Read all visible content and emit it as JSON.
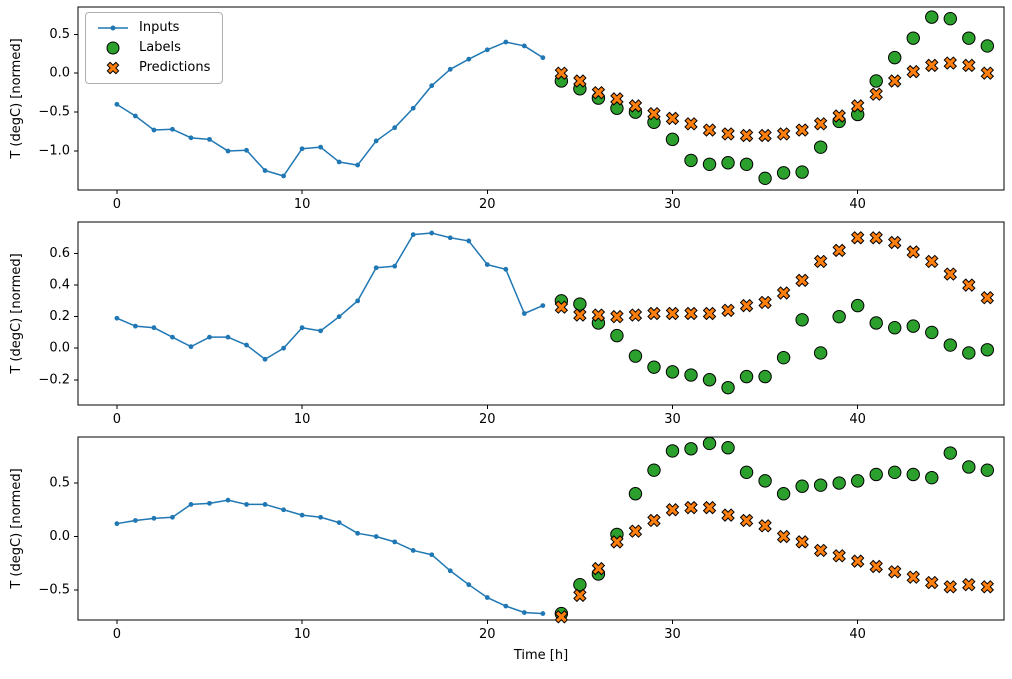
{
  "figure": {
    "background": "#ffffff",
    "xlabel": "Time [h]",
    "ylabel": "T (degC) [normed]"
  },
  "legend": {
    "items": [
      {
        "label": "Inputs",
        "marker": "line-with-dot",
        "color": "#1f77b4"
      },
      {
        "label": "Labels",
        "marker": "filled-circle",
        "color": "#2ca02c"
      },
      {
        "label": "Predictions",
        "marker": "filled-x",
        "color": "#ff7f0e"
      }
    ]
  },
  "chart_data": [
    {
      "type": "line",
      "title": "",
      "xlabel": "",
      "ylabel": "T (degC) [normed]",
      "xlim": [
        -2.1,
        47.9
      ],
      "ylim": [
        -1.5,
        0.85
      ],
      "xticks": [
        0,
        10,
        20,
        30,
        40
      ],
      "xtick_labels": [
        "0",
        "10",
        "20",
        "30",
        "40"
      ],
      "yticks": [
        -1.0,
        -0.5,
        0.0,
        0.5
      ],
      "ytick_labels": [
        "−1.0",
        "−0.5",
        "0.0",
        "0.5"
      ],
      "grid": false,
      "legend_position": "upper left",
      "series": [
        {
          "name": "Inputs",
          "type": "line",
          "color": "#1f77b4",
          "x": [
            0,
            1,
            2,
            3,
            4,
            5,
            6,
            7,
            8,
            9,
            10,
            11,
            12,
            13,
            14,
            15,
            16,
            17,
            18,
            19,
            20,
            21,
            22,
            23
          ],
          "y": [
            -0.4,
            -0.55,
            -0.73,
            -0.72,
            -0.83,
            -0.85,
            -1.0,
            -0.99,
            -1.25,
            -1.32,
            -0.97,
            -0.95,
            -1.14,
            -1.18,
            -0.87,
            -0.7,
            -0.45,
            -0.16,
            0.05,
            0.18,
            0.3,
            0.4,
            0.35,
            0.2
          ]
        },
        {
          "name": "Labels",
          "type": "scatter-circle",
          "color": "#2ca02c",
          "edge_color": "#000000",
          "x": [
            24,
            25,
            26,
            27,
            28,
            29,
            30,
            31,
            32,
            33,
            34,
            35,
            36,
            37,
            38,
            39,
            40,
            41,
            42,
            43,
            44,
            45,
            46,
            47
          ],
          "y": [
            -0.1,
            -0.2,
            -0.32,
            -0.45,
            -0.5,
            -0.63,
            -0.85,
            -1.12,
            -1.17,
            -1.15,
            -1.17,
            -1.35,
            -1.28,
            -1.27,
            -0.95,
            -0.62,
            -0.53,
            -0.1,
            0.2,
            0.45,
            0.72,
            0.7,
            0.45,
            0.35
          ]
        },
        {
          "name": "Predictions",
          "type": "scatter-x",
          "color": "#ff7f0e",
          "edge_color": "#000000",
          "x": [
            24,
            25,
            26,
            27,
            28,
            29,
            30,
            31,
            32,
            33,
            34,
            35,
            36,
            37,
            38,
            39,
            40,
            41,
            42,
            43,
            44,
            45,
            46,
            47
          ],
          "y": [
            0.0,
            -0.1,
            -0.25,
            -0.33,
            -0.42,
            -0.52,
            -0.58,
            -0.65,
            -0.73,
            -0.78,
            -0.8,
            -0.8,
            -0.78,
            -0.73,
            -0.65,
            -0.55,
            -0.42,
            -0.27,
            -0.1,
            0.02,
            0.1,
            0.13,
            0.1,
            0.0
          ]
        }
      ]
    },
    {
      "type": "line",
      "title": "",
      "xlabel": "",
      "ylabel": "T (degC) [normed]",
      "xlim": [
        -2.1,
        47.9
      ],
      "ylim": [
        -0.36,
        0.8
      ],
      "xticks": [
        0,
        10,
        20,
        30,
        40
      ],
      "xtick_labels": [
        "0",
        "10",
        "20",
        "30",
        "40"
      ],
      "yticks": [
        -0.2,
        0.0,
        0.2,
        0.4,
        0.6
      ],
      "ytick_labels": [
        "−0.2",
        "0.0",
        "0.2",
        "0.4",
        "0.6"
      ],
      "grid": false,
      "series": [
        {
          "name": "Inputs",
          "type": "line",
          "color": "#1f77b4",
          "x": [
            0,
            1,
            2,
            3,
            4,
            5,
            6,
            7,
            8,
            9,
            10,
            11,
            12,
            13,
            14,
            15,
            16,
            17,
            18,
            19,
            20,
            21,
            22,
            23
          ],
          "y": [
            0.19,
            0.14,
            0.13,
            0.07,
            0.01,
            0.07,
            0.07,
            0.02,
            -0.07,
            0.0,
            0.13,
            0.11,
            0.2,
            0.3,
            0.51,
            0.52,
            0.72,
            0.73,
            0.7,
            0.68,
            0.53,
            0.5,
            0.22,
            0.27
          ]
        },
        {
          "name": "Labels",
          "type": "scatter-circle",
          "color": "#2ca02c",
          "edge_color": "#000000",
          "x": [
            24,
            25,
            26,
            27,
            28,
            29,
            30,
            31,
            32,
            33,
            34,
            35,
            36,
            37,
            38,
            39,
            40,
            41,
            42,
            43,
            44,
            45,
            46,
            47
          ],
          "y": [
            0.3,
            0.28,
            0.16,
            0.08,
            -0.05,
            -0.12,
            -0.15,
            -0.17,
            -0.2,
            -0.25,
            -0.18,
            -0.18,
            -0.06,
            0.18,
            -0.03,
            0.2,
            0.27,
            0.16,
            0.13,
            0.14,
            0.1,
            0.02,
            -0.03,
            -0.01
          ]
        },
        {
          "name": "Predictions",
          "type": "scatter-x",
          "color": "#ff7f0e",
          "edge_color": "#000000",
          "x": [
            24,
            25,
            26,
            27,
            28,
            29,
            30,
            31,
            32,
            33,
            34,
            35,
            36,
            37,
            38,
            39,
            40,
            41,
            42,
            43,
            44,
            45,
            46,
            47
          ],
          "y": [
            0.26,
            0.21,
            0.21,
            0.2,
            0.21,
            0.22,
            0.22,
            0.22,
            0.22,
            0.24,
            0.27,
            0.29,
            0.35,
            0.43,
            0.55,
            0.62,
            0.7,
            0.7,
            0.67,
            0.61,
            0.55,
            0.47,
            0.4,
            0.32
          ]
        }
      ]
    },
    {
      "type": "line",
      "title": "",
      "xlabel": "Time [h]",
      "ylabel": "T (degC) [normed]",
      "xlim": [
        -2.1,
        47.9
      ],
      "ylim": [
        -0.78,
        0.93
      ],
      "xticks": [
        0,
        10,
        20,
        30,
        40
      ],
      "xtick_labels": [
        "0",
        "10",
        "20",
        "30",
        "40"
      ],
      "yticks": [
        -0.5,
        0.0,
        0.5
      ],
      "ytick_labels": [
        "−0.5",
        "0.0",
        "0.5"
      ],
      "grid": false,
      "series": [
        {
          "name": "Inputs",
          "type": "line",
          "color": "#1f77b4",
          "x": [
            0,
            1,
            2,
            3,
            4,
            5,
            6,
            7,
            8,
            9,
            10,
            11,
            12,
            13,
            14,
            15,
            16,
            17,
            18,
            19,
            20,
            21,
            22,
            23
          ],
          "y": [
            0.12,
            0.15,
            0.17,
            0.18,
            0.3,
            0.31,
            0.34,
            0.3,
            0.3,
            0.25,
            0.2,
            0.18,
            0.13,
            0.03,
            0.0,
            -0.05,
            -0.13,
            -0.17,
            -0.32,
            -0.45,
            -0.57,
            -0.65,
            -0.71,
            -0.72
          ]
        },
        {
          "name": "Labels",
          "type": "scatter-circle",
          "color": "#2ca02c",
          "edge_color": "#000000",
          "x": [
            24,
            25,
            26,
            27,
            28,
            29,
            30,
            31,
            32,
            33,
            34,
            35,
            36,
            37,
            38,
            39,
            40,
            41,
            42,
            43,
            44,
            45,
            46,
            47
          ],
          "y": [
            -0.72,
            -0.45,
            -0.35,
            0.02,
            0.4,
            0.62,
            0.8,
            0.82,
            0.87,
            0.83,
            0.6,
            0.52,
            0.4,
            0.47,
            0.48,
            0.5,
            0.52,
            0.58,
            0.6,
            0.58,
            0.55,
            0.78,
            0.65,
            0.62
          ]
        },
        {
          "name": "Predictions",
          "type": "scatter-x",
          "color": "#ff7f0e",
          "edge_color": "#000000",
          "x": [
            24,
            25,
            26,
            27,
            28,
            29,
            30,
            31,
            32,
            33,
            34,
            35,
            36,
            37,
            38,
            39,
            40,
            41,
            42,
            43,
            44,
            45,
            46,
            47
          ],
          "y": [
            -0.75,
            -0.55,
            -0.3,
            -0.05,
            0.05,
            0.15,
            0.25,
            0.27,
            0.27,
            0.2,
            0.15,
            0.1,
            0.0,
            -0.05,
            -0.13,
            -0.18,
            -0.23,
            -0.28,
            -0.33,
            -0.38,
            -0.43,
            -0.47,
            -0.45,
            -0.47
          ]
        }
      ]
    }
  ]
}
